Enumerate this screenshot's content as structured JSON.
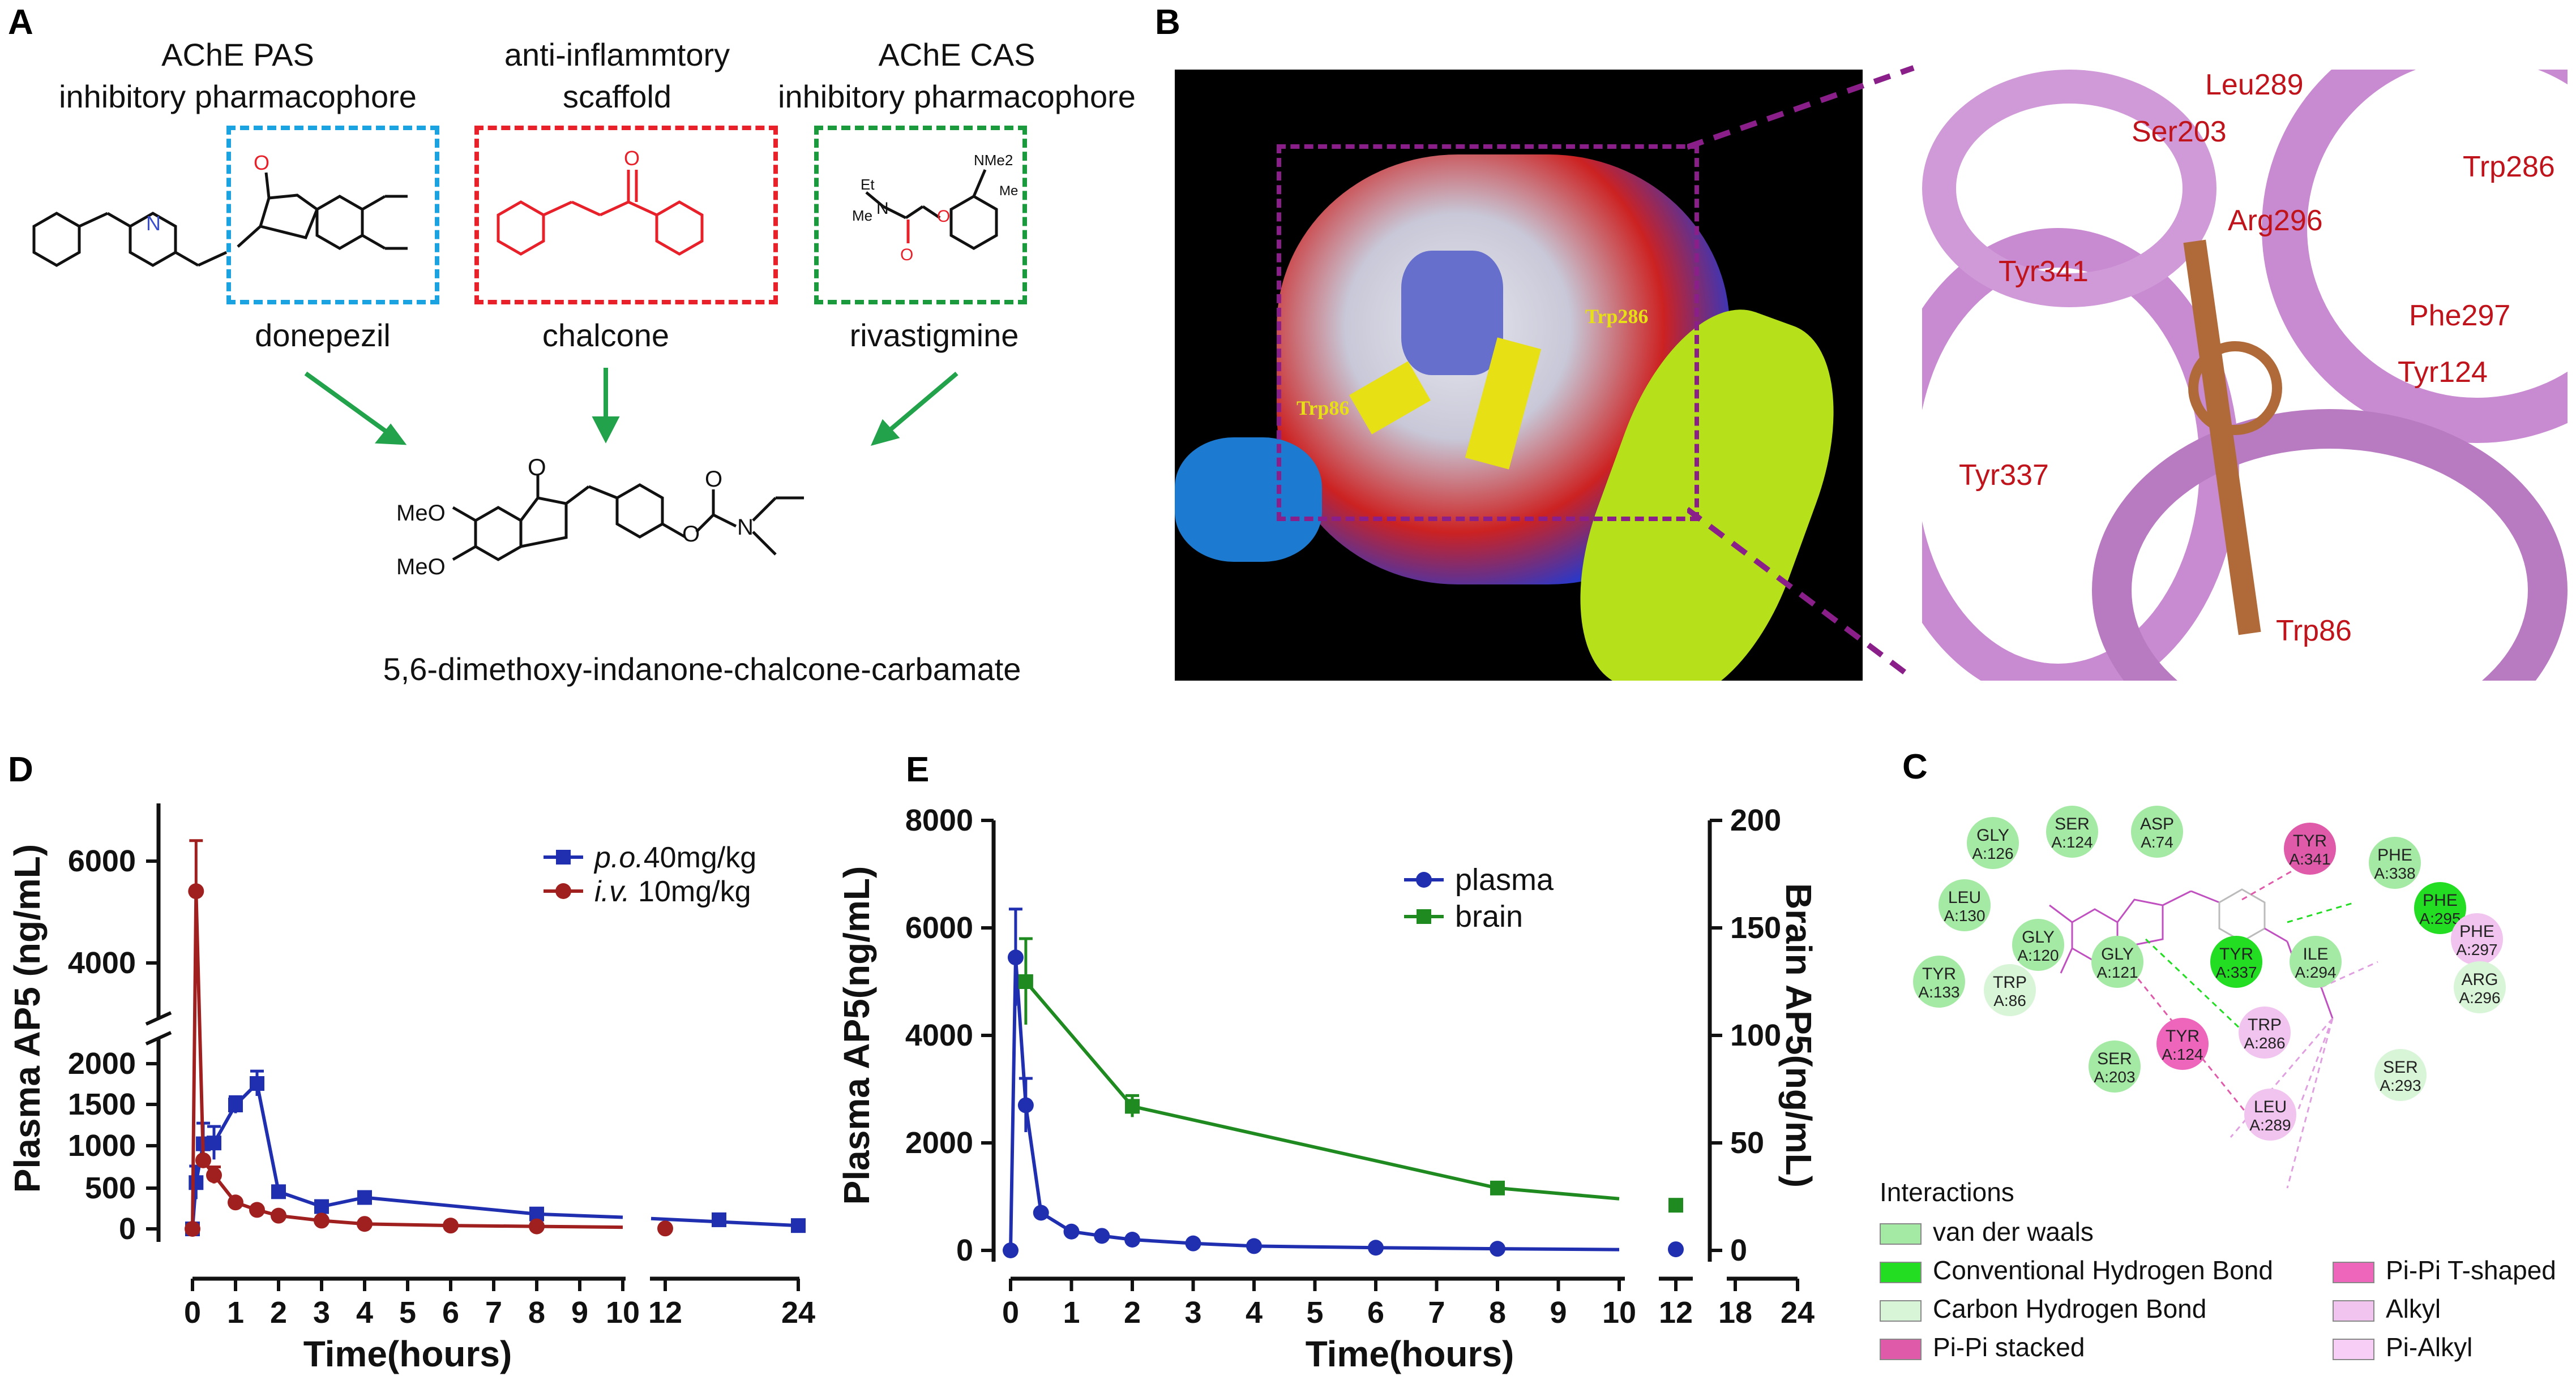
{
  "panels": {
    "A": "A",
    "B": "B",
    "C": "C",
    "D": "D",
    "E": "E"
  },
  "panelA": {
    "top_labels": [
      "AChE PAS\ninhibitory pharmacophore",
      "anti-inflammtory\nscaffold",
      "AChE CAS\ninhibitory pharmacophore"
    ],
    "drug_names": [
      "donepezil",
      "chalcone",
      "rivastigmine"
    ],
    "product": "5,6-dimethoxy-indanone-chalcone-carbamate",
    "atom_labels": {
      "N": "N",
      "O": "O",
      "OMe": "O",
      "MeO1": "MeO",
      "MeO2": "MeO",
      "Et": "Et",
      "Me": "Me",
      "NMe2": "NMe2",
      "Me2": "Me"
    },
    "colors": {
      "pas": "#1aa3e0",
      "scaffold": "#e8202a",
      "cas": "#1a9a3c",
      "arrow": "#22a24b"
    }
  },
  "panelB": {
    "left_labels": [
      "Trp86",
      "Trp286"
    ],
    "right_labels": [
      "Leu289",
      "Ser203",
      "Trp286",
      "Arg296",
      "Tyr341",
      "Phe297",
      "Tyr124",
      "Tyr337",
      "Trp86"
    ]
  },
  "panelC": {
    "legend_title": "Interactions",
    "legend": [
      {
        "label": "van der waals",
        "color": "#a4eaa4"
      },
      {
        "label": "Conventional Hydrogen Bond",
        "color": "#22dd22"
      },
      {
        "label": "Carbon Hydrogen Bond",
        "color": "#d8f5d8"
      },
      {
        "label": "Pi-Pi stacked",
        "color": "#e05aaa"
      },
      {
        "label": "Pi-Pi T-shaped",
        "color": "#ee66bb"
      },
      {
        "label": "Alkyl",
        "color": "#f0c4ee"
      },
      {
        "label": "Pi-Alkyl",
        "color": "#f7cff6"
      }
    ],
    "residues": [
      {
        "t": "GLY",
        "s": "A:126",
        "c": "#a4eaa4"
      },
      {
        "t": "SER",
        "s": "A:124",
        "c": "#a4eaa4"
      },
      {
        "t": "ASP",
        "s": "A:74",
        "c": "#a4eaa4"
      },
      {
        "t": "TYR",
        "s": "A:341",
        "c": "#e05aaa"
      },
      {
        "t": "PHE",
        "s": "A:338",
        "c": "#a4eaa4"
      },
      {
        "t": "PHE",
        "s": "A:295",
        "c": "#22dd22"
      },
      {
        "t": "LEU",
        "s": "A:130",
        "c": "#a4eaa4"
      },
      {
        "t": "PHE",
        "s": "A:297",
        "c": "#f0c4ee"
      },
      {
        "t": "GLY",
        "s": "A:120",
        "c": "#a4eaa4"
      },
      {
        "t": "GLY",
        "s": "A:121",
        "c": "#a4eaa4"
      },
      {
        "t": "TYR",
        "s": "A:337",
        "c": "#22dd22"
      },
      {
        "t": "ILE",
        "s": "A:294",
        "c": "#a4eaa4"
      },
      {
        "t": "ARG",
        "s": "A:296",
        "c": "#d8f5d8"
      },
      {
        "t": "TYR",
        "s": "A:133",
        "c": "#a4eaa4"
      },
      {
        "t": "TRP",
        "s": "A:86",
        "c": "#d8f5d8"
      },
      {
        "t": "TRP",
        "s": "A:286",
        "c": "#f0c4ee"
      },
      {
        "t": "TYR",
        "s": "A:124",
        "c": "#ee66bb"
      },
      {
        "t": "SER",
        "s": "A:203",
        "c": "#a4eaa4"
      },
      {
        "t": "SER",
        "s": "A:293",
        "c": "#d8f5d8"
      },
      {
        "t": "LEU",
        "s": "A:289",
        "c": "#f0c4ee"
      }
    ]
  },
  "chart_data": [
    {
      "type": "line",
      "panel": "D",
      "xlabel": "Time(hours)",
      "ylabel": "Plasma AP5 (ng/mL)",
      "x_ticks": [
        "0",
        "1",
        "2",
        "3",
        "4",
        "5",
        "6",
        "7",
        "8",
        "9",
        "10",
        "12",
        "24"
      ],
      "y_ticks": [
        "0",
        "500",
        "1000",
        "1500",
        "2000",
        "4000",
        "6000"
      ],
      "y_break": [
        2000,
        3000
      ],
      "legend_position": "top-right",
      "series": [
        {
          "name_italic": "p.o.",
          "name_rest": "40mg/kg",
          "color": "#1f2fb0",
          "marker": "square",
          "x": [
            0,
            0.083,
            0.25,
            0.5,
            1,
            1.5,
            2,
            3,
            4,
            8,
            12,
            24
          ],
          "y": [
            0,
            560,
            1030,
            1040,
            1500,
            1760,
            450,
            270,
            380,
            180,
            110,
            40
          ],
          "err": [
            0,
            200,
            250,
            200,
            100,
            150,
            0,
            0,
            0,
            0,
            0,
            0
          ]
        },
        {
          "name_italic": "i.v.",
          "name_rest": " 10mg/kg",
          "color": "#a01f1f",
          "marker": "circle",
          "x": [
            0,
            0.083,
            0.25,
            0.5,
            1,
            1.5,
            2,
            3,
            4,
            6,
            8,
            12
          ],
          "y": [
            0,
            5400,
            830,
            650,
            320,
            230,
            160,
            100,
            60,
            40,
            30,
            5
          ],
          "err": [
            0,
            1000,
            0,
            100,
            0,
            0,
            0,
            0,
            0,
            0,
            0,
            0
          ]
        }
      ]
    },
    {
      "type": "line",
      "panel": "E",
      "xlabel": "Time(hours)",
      "ylabel": "Plasma AP5(ng/mL)",
      "ylabel_right": "Brain AP5(ng/mL)",
      "x_ticks": [
        "0",
        "1",
        "2",
        "3",
        "4",
        "5",
        "6",
        "7",
        "8",
        "9",
        "10",
        "12",
        "18",
        "24"
      ],
      "y_ticks": [
        "0",
        "2000",
        "4000",
        "6000",
        "8000"
      ],
      "y_ticks_right": [
        "0",
        "50",
        "100",
        "150",
        "200"
      ],
      "ylim": [
        0,
        8000
      ],
      "ylim_right": [
        0,
        200
      ],
      "legend_position": "top-right",
      "series": [
        {
          "name": "plasma",
          "color": "#1f2fb0",
          "marker": "circle",
          "axis": "left",
          "x": [
            0,
            0.083,
            0.25,
            0.5,
            1,
            1.5,
            2,
            3,
            4,
            6,
            8,
            12
          ],
          "y": [
            0,
            5450,
            2700,
            700,
            350,
            270,
            200,
            130,
            80,
            50,
            30,
            20
          ],
          "err": [
            0,
            900,
            500,
            0,
            0,
            0,
            0,
            0,
            0,
            0,
            0,
            0
          ]
        },
        {
          "name": "brain",
          "color": "#1f8a1f",
          "marker": "square",
          "axis": "right",
          "x": [
            0.25,
            2,
            8,
            12
          ],
          "y": [
            125,
            67,
            29,
            21
          ],
          "err": [
            20,
            5,
            0,
            0
          ]
        }
      ]
    }
  ]
}
